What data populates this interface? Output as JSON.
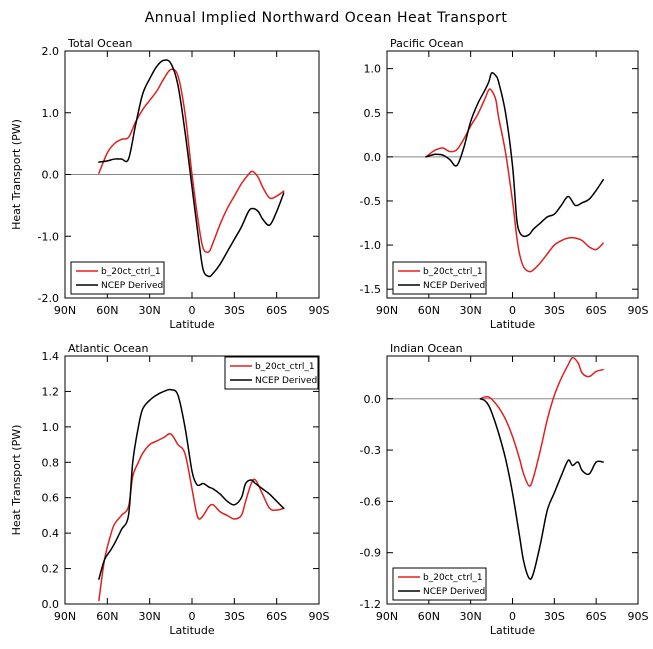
{
  "title": "Annual Implied Northward Ocean Heat Transport",
  "colors": {
    "model": "#e02020",
    "ncep": "#000000",
    "zero_line": "#888888"
  },
  "chart_data": [
    {
      "type": "line",
      "title": "Total Ocean",
      "xlabel": "Latitude",
      "ylabel": "Heat Transport (PW)",
      "xlim": [
        90,
        -90
      ],
      "ylim": [
        -2.0,
        2.0
      ],
      "x_ticks": [
        90,
        60,
        30,
        0,
        -30,
        -60,
        -90
      ],
      "x_tick_labels": [
        "90N",
        "60N",
        "30N",
        "0",
        "30S",
        "60S",
        "90S"
      ],
      "y_ticks": [
        -2.0,
        -1.0,
        0.0,
        1.0,
        2.0
      ],
      "y_tick_labels": [
        "-2.0",
        "-1.0",
        "0.0",
        "1.0",
        "2.0"
      ],
      "zero_line": true,
      "legend_position": "bottom-left",
      "series": [
        {
          "name": "b_20ct_ctrl_1",
          "color": "#e02020",
          "x": [
            66,
            60,
            55,
            50,
            45,
            40,
            35,
            30,
            25,
            20,
            15,
            10,
            5,
            0,
            -5,
            -8,
            -12,
            -15,
            -20,
            -25,
            -30,
            -35,
            -40,
            -43,
            -47,
            -50,
            -55,
            -60,
            -65
          ],
          "y": [
            0.02,
            0.35,
            0.5,
            0.57,
            0.6,
            0.85,
            1.05,
            1.2,
            1.35,
            1.55,
            1.7,
            1.6,
            1.0,
            0.0,
            -0.85,
            -1.2,
            -1.25,
            -1.1,
            -0.8,
            -0.55,
            -0.35,
            -0.15,
            0.0,
            0.05,
            -0.05,
            -0.2,
            -0.38,
            -0.35,
            -0.27
          ]
        },
        {
          "name": "NCEP Derived",
          "color": "#000000",
          "x": [
            66,
            60,
            55,
            50,
            45,
            40,
            35,
            30,
            25,
            20,
            15,
            10,
            5,
            0,
            -5,
            -8,
            -12,
            -15,
            -20,
            -25,
            -30,
            -35,
            -40,
            -43,
            -47,
            -50,
            -55,
            -60,
            -65
          ],
          "y": [
            0.2,
            0.22,
            0.25,
            0.25,
            0.25,
            0.8,
            1.3,
            1.55,
            1.75,
            1.85,
            1.8,
            1.45,
            0.7,
            -0.2,
            -1.1,
            -1.55,
            -1.65,
            -1.6,
            -1.45,
            -1.25,
            -1.05,
            -0.85,
            -0.6,
            -0.55,
            -0.6,
            -0.72,
            -0.82,
            -0.6,
            -0.3
          ]
        }
      ]
    },
    {
      "type": "line",
      "title": "Pacific Ocean",
      "xlabel": "Latitude",
      "ylabel": "",
      "xlim": [
        90,
        -90
      ],
      "ylim": [
        -1.6,
        1.2
      ],
      "x_ticks": [
        90,
        60,
        30,
        0,
        -30,
        -60,
        -90
      ],
      "x_tick_labels": [
        "90N",
        "60N",
        "30N",
        "0",
        "30S",
        "60S",
        "90S"
      ],
      "y_ticks": [
        -1.5,
        -1.0,
        -0.5,
        0.0,
        0.5,
        1.0
      ],
      "y_tick_labels": [
        "-1.5",
        "-1.0",
        "-0.5",
        "0.0",
        "0.5",
        "1.0"
      ],
      "zero_line": true,
      "legend_position": "bottom-left",
      "series": [
        {
          "name": "b_20ct_ctrl_1",
          "color": "#e02020",
          "x": [
            62,
            58,
            55,
            50,
            45,
            40,
            35,
            30,
            25,
            20,
            17,
            15,
            12,
            10,
            5,
            0,
            -3,
            -5,
            -8,
            -12,
            -15,
            -20,
            -25,
            -30,
            -35,
            -40,
            -45,
            -50,
            -55,
            -60,
            -65
          ],
          "y": [
            0.0,
            0.05,
            0.08,
            0.1,
            0.06,
            0.08,
            0.2,
            0.35,
            0.48,
            0.65,
            0.76,
            0.75,
            0.65,
            0.45,
            0.05,
            -0.5,
            -0.9,
            -1.1,
            -1.25,
            -1.3,
            -1.28,
            -1.2,
            -1.1,
            -1.0,
            -0.95,
            -0.92,
            -0.92,
            -0.95,
            -1.02,
            -1.05,
            -0.98
          ]
        },
        {
          "name": "NCEP Derived",
          "color": "#000000",
          "x": [
            62,
            58,
            55,
            50,
            45,
            40,
            35,
            30,
            25,
            20,
            17,
            15,
            12,
            10,
            5,
            0,
            -3,
            -5,
            -8,
            -12,
            -15,
            -20,
            -25,
            -30,
            -35,
            -40,
            -45,
            -50,
            -55,
            -60,
            -65
          ],
          "y": [
            0.0,
            0.02,
            0.03,
            0.02,
            -0.03,
            -0.1,
            0.1,
            0.4,
            0.6,
            0.75,
            0.85,
            0.95,
            0.92,
            0.85,
            0.5,
            -0.1,
            -0.7,
            -0.85,
            -0.9,
            -0.88,
            -0.82,
            -0.75,
            -0.68,
            -0.65,
            -0.55,
            -0.45,
            -0.55,
            -0.52,
            -0.48,
            -0.38,
            -0.26
          ]
        }
      ]
    },
    {
      "type": "line",
      "title": "Atlantic Ocean",
      "xlabel": "Latitude",
      "ylabel": "Heat Transport (PW)",
      "xlim": [
        90,
        -90
      ],
      "ylim": [
        0.0,
        1.4
      ],
      "x_ticks": [
        90,
        60,
        30,
        0,
        -30,
        -60,
        -90
      ],
      "x_tick_labels": [
        "90N",
        "60N",
        "30N",
        "0",
        "30S",
        "60S",
        "90S"
      ],
      "y_ticks": [
        0.0,
        0.2,
        0.4,
        0.6,
        0.8,
        1.0,
        1.2,
        1.4
      ],
      "y_tick_labels": [
        "0.0",
        "0.2",
        "0.4",
        "0.6",
        "0.8",
        "1.0",
        "1.2",
        "1.4"
      ],
      "zero_line": false,
      "legend_position": "top-right",
      "series": [
        {
          "name": "b_20ct_ctrl_1",
          "color": "#e02020",
          "x": [
            66,
            62,
            58,
            55,
            50,
            45,
            42,
            38,
            35,
            30,
            25,
            20,
            15,
            10,
            5,
            0,
            -3,
            -5,
            -8,
            -12,
            -15,
            -20,
            -25,
            -30,
            -35,
            -38,
            -42,
            -45,
            -50,
            -55,
            -60,
            -65
          ],
          "y": [
            0.02,
            0.25,
            0.38,
            0.45,
            0.5,
            0.55,
            0.72,
            0.8,
            0.85,
            0.9,
            0.92,
            0.94,
            0.96,
            0.9,
            0.85,
            0.65,
            0.52,
            0.48,
            0.5,
            0.55,
            0.56,
            0.52,
            0.5,
            0.48,
            0.5,
            0.58,
            0.68,
            0.7,
            0.62,
            0.54,
            0.53,
            0.54
          ]
        },
        {
          "name": "NCEP Derived",
          "color": "#000000",
          "x": [
            66,
            62,
            58,
            55,
            50,
            45,
            42,
            38,
            35,
            30,
            25,
            20,
            15,
            10,
            5,
            0,
            -3,
            -5,
            -8,
            -12,
            -15,
            -20,
            -25,
            -30,
            -35,
            -38,
            -42,
            -45,
            -50,
            -55,
            -60,
            -65
          ],
          "y": [
            0.14,
            0.25,
            0.3,
            0.34,
            0.42,
            0.5,
            0.8,
            1.0,
            1.1,
            1.15,
            1.18,
            1.2,
            1.21,
            1.18,
            1.0,
            0.75,
            0.68,
            0.67,
            0.68,
            0.66,
            0.65,
            0.62,
            0.58,
            0.56,
            0.6,
            0.68,
            0.7,
            0.68,
            0.65,
            0.62,
            0.58,
            0.54
          ]
        }
      ]
    },
    {
      "type": "line",
      "title": "Indian Ocean",
      "xlabel": "Latitude",
      "ylabel": "",
      "xlim": [
        90,
        -90
      ],
      "ylim": [
        -1.2,
        0.25
      ],
      "x_ticks": [
        90,
        60,
        30,
        0,
        -30,
        -60,
        -90
      ],
      "x_tick_labels": [
        "90N",
        "60N",
        "30N",
        "0",
        "30S",
        "60S",
        "90S"
      ],
      "y_ticks": [
        -1.2,
        -0.9,
        -0.6,
        -0.3,
        0.0
      ],
      "y_tick_labels": [
        "-1.2",
        "-0.9",
        "-0.6",
        "-0.3",
        "0.0"
      ],
      "zero_line": true,
      "legend_position": "bottom-left",
      "series": [
        {
          "name": "b_20ct_ctrl_1",
          "color": "#e02020",
          "x": [
            23,
            20,
            17,
            14,
            10,
            5,
            0,
            -5,
            -8,
            -12,
            -15,
            -20,
            -25,
            -30,
            -35,
            -40,
            -43,
            -47,
            -50,
            -55,
            -60,
            -65
          ],
          "y": [
            0.0,
            0.01,
            0.01,
            -0.01,
            -0.05,
            -0.12,
            -0.22,
            -0.35,
            -0.44,
            -0.51,
            -0.46,
            -0.3,
            -0.12,
            0.02,
            0.12,
            0.2,
            0.24,
            0.21,
            0.15,
            0.13,
            0.16,
            0.17
          ]
        },
        {
          "name": "NCEP Derived",
          "color": "#000000",
          "x": [
            23,
            20,
            17,
            14,
            10,
            5,
            0,
            -5,
            -8,
            -12,
            -15,
            -20,
            -25,
            -30,
            -35,
            -40,
            -43,
            -47,
            -50,
            -55,
            -60,
            -65
          ],
          "y": [
            0.0,
            -0.01,
            -0.04,
            -0.1,
            -0.2,
            -0.35,
            -0.55,
            -0.8,
            -0.95,
            -1.05,
            -1.02,
            -0.85,
            -0.65,
            -0.55,
            -0.45,
            -0.36,
            -0.39,
            -0.37,
            -0.42,
            -0.44,
            -0.37,
            -0.37
          ]
        }
      ]
    }
  ]
}
